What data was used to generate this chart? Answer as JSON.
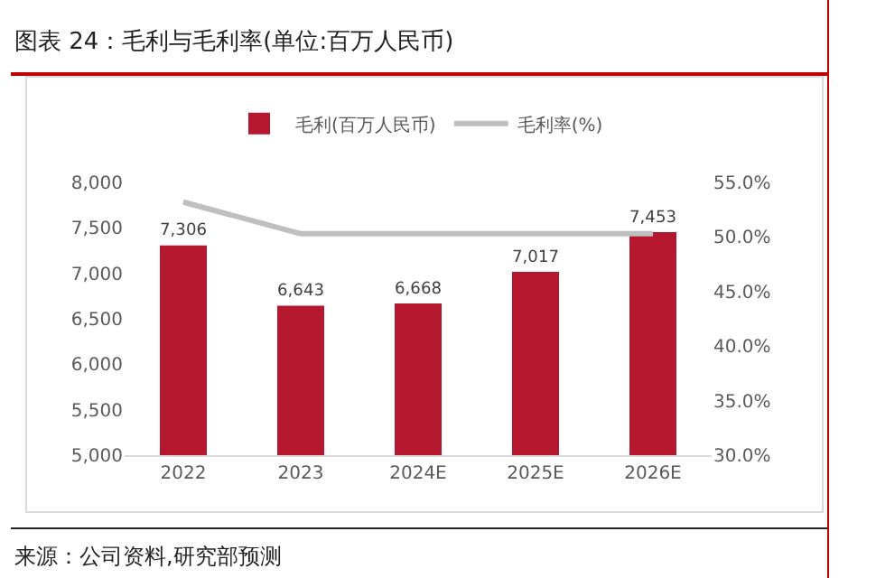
{
  "chart_data": {
    "type": "bar",
    "title": "图表 24：毛利与毛利率(单位:百万人民币)",
    "annotations": [
      "来源：公司资料,研究部预测"
    ],
    "categories": [
      "2022",
      "2023",
      "2024E",
      "2025E",
      "2026E"
    ],
    "series": [
      {
        "name": "毛利(百万人民币)",
        "color": "#b5172e",
        "values": [
          7306,
          6643,
          6668,
          7017,
          7453
        ],
        "value_labels": [
          "7,306",
          "6,643",
          "6,668",
          "7,017",
          "7,453"
        ]
      },
      {
        "name": "毛利率(%)",
        "type": "line",
        "axis": "y2",
        "color": "#bfbfbf",
        "marker": "none",
        "values": [
          53.2,
          50.3,
          50.3,
          50.3,
          50.3
        ]
      }
    ],
    "ylim": [
      5000,
      8000
    ],
    "yticks": [
      {
        "value": 5000,
        "label": "5,000"
      },
      {
        "value": 5500,
        "label": "5,500"
      },
      {
        "value": 6000,
        "label": "6,000"
      },
      {
        "value": 6500,
        "label": "6,500"
      },
      {
        "value": 7000,
        "label": "7,000"
      },
      {
        "value": 7500,
        "label": "7,500"
      },
      {
        "value": 8000,
        "label": "8,000"
      }
    ],
    "y2lim": [
      30,
      55
    ],
    "y2ticks": [
      {
        "value": 30,
        "label": "30.0%"
      },
      {
        "value": 35,
        "label": "35.0%"
      },
      {
        "value": 40,
        "label": "40.0%"
      },
      {
        "value": 45,
        "label": "45.0%"
      },
      {
        "value": 50,
        "label": "50.0%"
      },
      {
        "value": 55,
        "label": "55.0%"
      }
    ],
    "legend": "top",
    "grid": false
  }
}
